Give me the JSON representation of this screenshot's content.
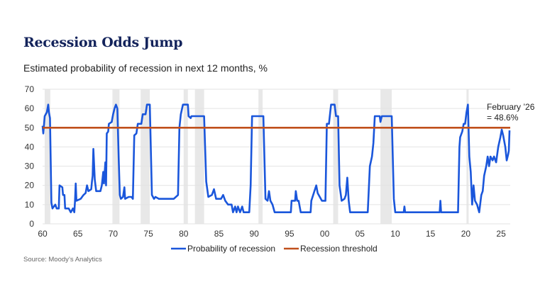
{
  "title": "Recession Odds Jump",
  "subtitle": "Estimated probability of recession in next 12 months, %",
  "source": "Source: Moody’s Analytics",
  "chart_data": {
    "type": "line",
    "title": "Recession Odds Jump",
    "subtitle": "Estimated probability of recession in next 12 months, %",
    "xlim": [
      1960,
      2026.3
    ],
    "ylim": [
      0,
      70
    ],
    "grid": true,
    "legend": "bottom",
    "x_ticks": [
      1960,
      1965,
      1970,
      1975,
      1980,
      1985,
      1990,
      1995,
      2000,
      2005,
      2010,
      2015,
      2020,
      2025
    ],
    "x_tick_labels": [
      "60",
      "65",
      "70",
      "75",
      "80",
      "85",
      "90",
      "95",
      "00",
      "05",
      "10",
      "15",
      "20",
      "25"
    ],
    "y_ticks": [
      0,
      10,
      20,
      30,
      40,
      50,
      60,
      70
    ],
    "y_tick_labels": [
      "0",
      "10",
      "20",
      "30",
      "40",
      "50",
      "60",
      "70"
    ],
    "recession_shading": [
      [
        1960.3,
        1961.1
      ],
      [
        1969.9,
        1970.9
      ],
      [
        1973.9,
        1975.2
      ],
      [
        1980.0,
        1980.6
      ],
      [
        1981.6,
        1982.9
      ],
      [
        1990.6,
        1991.2
      ],
      [
        2001.2,
        2001.9
      ],
      [
        2007.9,
        2009.5
      ],
      [
        2020.1,
        2020.3
      ]
    ],
    "shading_color": "#e8e8e8",
    "annotation": {
      "line1": "February ’26",
      "line2": "= 48.6%",
      "x": 2026.2,
      "y": 48.6
    },
    "series": [
      {
        "name": "Probability of recession",
        "color": "#1a56db",
        "points": [
          [
            1960.0,
            51
          ],
          [
            1960.1,
            47
          ],
          [
            1960.3,
            56
          ],
          [
            1960.6,
            58
          ],
          [
            1960.8,
            62
          ],
          [
            1960.9,
            58
          ],
          [
            1961.05,
            55
          ],
          [
            1961.25,
            11
          ],
          [
            1961.4,
            8
          ],
          [
            1961.8,
            10
          ],
          [
            1962.0,
            8
          ],
          [
            1962.3,
            8
          ],
          [
            1962.4,
            20
          ],
          [
            1962.8,
            19
          ],
          [
            1962.9,
            15
          ],
          [
            1963.1,
            15
          ],
          [
            1963.2,
            8
          ],
          [
            1963.7,
            8
          ],
          [
            1964.0,
            6
          ],
          [
            1964.3,
            8
          ],
          [
            1964.5,
            6
          ],
          [
            1964.6,
            12
          ],
          [
            1964.7,
            21
          ],
          [
            1964.8,
            12
          ],
          [
            1965.4,
            13
          ],
          [
            1965.8,
            15
          ],
          [
            1966.1,
            16
          ],
          [
            1966.3,
            20
          ],
          [
            1966.5,
            17
          ],
          [
            1966.9,
            18
          ],
          [
            1967.0,
            22
          ],
          [
            1967.1,
            25
          ],
          [
            1967.2,
            39
          ],
          [
            1967.4,
            23
          ],
          [
            1967.6,
            17
          ],
          [
            1968.2,
            17
          ],
          [
            1968.4,
            20
          ],
          [
            1968.6,
            27
          ],
          [
            1968.7,
            21
          ],
          [
            1968.9,
            32
          ],
          [
            1969.0,
            20
          ],
          [
            1969.1,
            47
          ],
          [
            1969.3,
            48
          ],
          [
            1969.4,
            52
          ],
          [
            1969.8,
            53
          ],
          [
            1970.0,
            57
          ],
          [
            1970.2,
            60
          ],
          [
            1970.4,
            62
          ],
          [
            1970.6,
            60
          ],
          [
            1970.8,
            33
          ],
          [
            1970.95,
            15
          ],
          [
            1971.1,
            13
          ],
          [
            1971.4,
            14
          ],
          [
            1971.6,
            19
          ],
          [
            1971.7,
            13
          ],
          [
            1972.2,
            14
          ],
          [
            1972.6,
            14
          ],
          [
            1972.8,
            13
          ],
          [
            1973.0,
            46
          ],
          [
            1973.3,
            47
          ],
          [
            1973.5,
            52
          ],
          [
            1974.0,
            52
          ],
          [
            1974.2,
            57
          ],
          [
            1974.6,
            57
          ],
          [
            1974.8,
            62
          ],
          [
            1975.2,
            62
          ],
          [
            1975.5,
            15
          ],
          [
            1975.8,
            13
          ],
          [
            1976.0,
            14
          ],
          [
            1976.5,
            13
          ],
          [
            1978.6,
            13
          ],
          [
            1978.9,
            14
          ],
          [
            1979.2,
            15
          ],
          [
            1979.4,
            50
          ],
          [
            1979.6,
            57
          ],
          [
            1979.9,
            62
          ],
          [
            1980.6,
            62
          ],
          [
            1980.7,
            56
          ],
          [
            1981.0,
            55
          ],
          [
            1981.1,
            56
          ],
          [
            1982.9,
            56
          ],
          [
            1983.2,
            22
          ],
          [
            1983.5,
            14
          ],
          [
            1984.0,
            15
          ],
          [
            1984.3,
            18
          ],
          [
            1984.6,
            13
          ],
          [
            1985.3,
            13
          ],
          [
            1985.6,
            15
          ],
          [
            1985.9,
            12
          ],
          [
            1986.3,
            10
          ],
          [
            1986.8,
            10
          ],
          [
            1987.0,
            6
          ],
          [
            1987.3,
            9
          ],
          [
            1987.5,
            6
          ],
          [
            1987.7,
            9
          ],
          [
            1988.0,
            6
          ],
          [
            1988.3,
            9
          ],
          [
            1988.5,
            6
          ],
          [
            1989.3,
            6
          ],
          [
            1989.5,
            20
          ],
          [
            1989.7,
            56
          ],
          [
            1991.3,
            56
          ],
          [
            1991.6,
            13
          ],
          [
            1991.9,
            12
          ],
          [
            1992.1,
            17
          ],
          [
            1992.3,
            12
          ],
          [
            1992.6,
            10
          ],
          [
            1992.9,
            6
          ],
          [
            1995.2,
            6
          ],
          [
            1995.3,
            12
          ],
          [
            1995.8,
            12
          ],
          [
            1995.9,
            17
          ],
          [
            1996.1,
            12
          ],
          [
            1996.3,
            12
          ],
          [
            1996.6,
            6
          ],
          [
            1998.0,
            6
          ],
          [
            1998.1,
            12
          ],
          [
            1998.8,
            20
          ],
          [
            1999.0,
            16
          ],
          [
            1999.3,
            14
          ],
          [
            1999.6,
            12
          ],
          [
            2000.1,
            12
          ],
          [
            2000.3,
            52
          ],
          [
            2000.6,
            52
          ],
          [
            2000.9,
            62
          ],
          [
            2001.4,
            62
          ],
          [
            2001.6,
            56
          ],
          [
            2001.9,
            56
          ],
          [
            2002.1,
            20
          ],
          [
            2002.4,
            12
          ],
          [
            2002.8,
            13
          ],
          [
            2003.0,
            15
          ],
          [
            2003.2,
            24
          ],
          [
            2003.4,
            12
          ],
          [
            2003.6,
            6
          ],
          [
            2006.1,
            6
          ],
          [
            2006.4,
            30
          ],
          [
            2006.7,
            35
          ],
          [
            2006.9,
            42
          ],
          [
            2007.1,
            56
          ],
          [
            2007.8,
            56
          ],
          [
            2007.9,
            53
          ],
          [
            2008.1,
            56
          ],
          [
            2009.5,
            56
          ],
          [
            2009.8,
            13
          ],
          [
            2010.0,
            6
          ],
          [
            2011.2,
            6
          ],
          [
            2011.3,
            9
          ],
          [
            2011.4,
            6
          ],
          [
            2016.3,
            6
          ],
          [
            2016.4,
            12
          ],
          [
            2016.5,
            6
          ],
          [
            2018.9,
            6
          ],
          [
            2019.1,
            40
          ],
          [
            2019.2,
            45
          ],
          [
            2019.5,
            48
          ],
          [
            2019.7,
            52
          ],
          [
            2019.9,
            52
          ],
          [
            2020.1,
            58
          ],
          [
            2020.3,
            62
          ],
          [
            2020.5,
            35
          ],
          [
            2020.7,
            27
          ],
          [
            2020.9,
            10
          ],
          [
            2021.1,
            20
          ],
          [
            2021.3,
            12
          ],
          [
            2021.6,
            10
          ],
          [
            2021.9,
            6
          ],
          [
            2022.2,
            15
          ],
          [
            2022.4,
            17
          ],
          [
            2022.6,
            25
          ],
          [
            2022.9,
            30
          ],
          [
            2023.1,
            35
          ],
          [
            2023.3,
            30
          ],
          [
            2023.5,
            35
          ],
          [
            2023.8,
            33
          ],
          [
            2024.0,
            35
          ],
          [
            2024.3,
            32
          ],
          [
            2024.6,
            40
          ],
          [
            2024.9,
            45
          ],
          [
            2025.1,
            49
          ],
          [
            2025.3,
            46
          ],
          [
            2025.6,
            40
          ],
          [
            2025.8,
            33
          ],
          [
            2026.0,
            36
          ],
          [
            2026.1,
            38
          ],
          [
            2026.2,
            48.6
          ]
        ]
      },
      {
        "name": "Recession threshold",
        "color": "#c0501c",
        "points": [
          [
            1960,
            50
          ],
          [
            2026.3,
            50
          ]
        ]
      }
    ]
  }
}
